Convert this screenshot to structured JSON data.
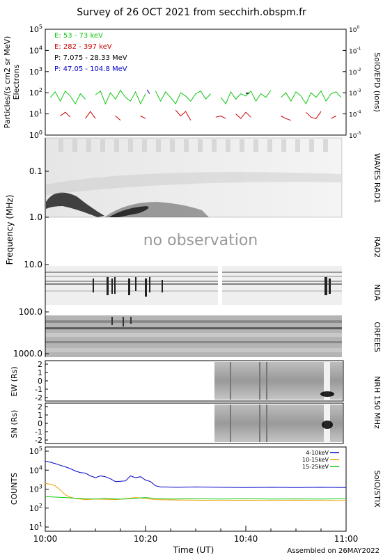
{
  "header": {
    "title": "Survey of 26 OCT 2021 from secchirh.obspm.fr",
    "assembled": "Assembled on 26MAY2022"
  },
  "colors": {
    "e_low": "#10c810",
    "e_high": "#c80000",
    "p_low": "#000000",
    "p_high": "#0000c8",
    "stix_4_10": "#0000c8",
    "stix_10_15": "#f0a000",
    "stix_15_25": "#10c810"
  },
  "panels": {
    "epd": {
      "ylabel_1": "Particles/(s cm2 sr MeV)",
      "ylabel_2": "Electrons",
      "right_label": "SolO/EPD (ions)",
      "legend": [
        {
          "label": "E: 53 - 73 keV",
          "color_key": "e_low"
        },
        {
          "label": "E: 282 - 397 keV",
          "color_key": "e_high"
        },
        {
          "label": "P: 7.075 - 28.33 MeV",
          "color_key": "p_low"
        },
        {
          "label": "P: 47.05 - 104.8 MeV",
          "color_key": "p_high"
        }
      ],
      "left_ticks": [
        "10^5",
        "10^4",
        "10^3",
        "10^2",
        "10^1",
        "10^0"
      ],
      "right_ticks": [
        "10^0",
        "10^-1",
        "10^-2",
        "10^-3",
        "10^-4",
        "10^-5"
      ]
    },
    "waves": {
      "label": "WAVES RAD1"
    },
    "rad2": {
      "label": "RAD2",
      "note": "no observation"
    },
    "nda": {
      "label": "NDA"
    },
    "orfees": {
      "label": "ORFEES"
    },
    "freq_axis": {
      "ylabel": "Frequency (MHz)",
      "ticks": [
        "0.1",
        "1.0",
        "10.0",
        "100.0",
        "1000.0"
      ]
    },
    "nrh_ew": {
      "ylabel": "EW (Rs)"
    },
    "nrh_sn": {
      "ylabel": "SN (Rs)"
    },
    "nrh_label": "NRH 150 MHz",
    "nrh_ticks": [
      "2",
      "1",
      "0",
      "-1",
      "-2"
    ],
    "stix": {
      "ylabel": "COUNTS",
      "right_label": "SolO/STIX",
      "legend": [
        {
          "label": "4-10keV",
          "color_key": "stix_4_10"
        },
        {
          "label": "10-15keV",
          "color_key": "stix_10_15"
        },
        {
          "label": "15-25keV",
          "color_key": "stix_15_25"
        }
      ],
      "ticks": [
        "10^5",
        "10^4",
        "10^3",
        "10^2",
        "10^1"
      ]
    }
  },
  "x_axis": {
    "label": "Time (UT)",
    "ticks": [
      "10:00",
      "10:20",
      "10:40",
      "11:00"
    ]
  },
  "chart_data": [
    {
      "type": "line",
      "title": "SolO/EPD",
      "ylabel": "Particles/(s cm2 sr MeV)",
      "yscale": "log",
      "ylim": [
        1,
        100000
      ],
      "y2lim": [
        1e-05,
        1
      ],
      "xlim": [
        "10:00",
        "11:00"
      ],
      "series": [
        {
          "name": "E: 53 - 73 keV",
          "x": [
            1,
            2,
            3,
            4,
            5,
            6,
            7,
            8,
            10,
            11,
            12,
            13,
            14,
            15,
            16,
            17,
            18,
            19,
            20,
            22,
            23,
            24,
            25,
            26,
            27,
            28,
            29,
            30,
            31,
            32,
            33,
            35,
            36,
            37,
            38,
            39,
            40,
            41,
            42,
            43,
            44,
            45,
            47,
            48,
            49,
            50,
            51,
            52,
            53,
            54,
            55,
            56,
            57,
            58,
            59
          ],
          "y": [
            60,
            110,
            40,
            120,
            70,
            30,
            90,
            50,
            80,
            120,
            30,
            100,
            50,
            130,
            60,
            40,
            110,
            30,
            90,
            120,
            40,
            110,
            60,
            30,
            100,
            70,
            40,
            90,
            120,
            50,
            90,
            60,
            30,
            110,
            50,
            90,
            70,
            120,
            40,
            90,
            60,
            130,
            60,
            100,
            40,
            110,
            70,
            30,
            100,
            60,
            120,
            40,
            90,
            110,
            60
          ]
        },
        {
          "name": "E: 282 - 397 keV",
          "x": [
            3,
            4,
            5,
            8,
            9,
            10,
            14,
            15,
            19,
            20,
            26,
            27,
            28,
            29,
            34,
            35,
            36,
            38,
            39,
            40,
            41,
            47,
            48,
            49,
            52,
            53,
            54,
            55,
            57,
            58
          ],
          "y": [
            8,
            12,
            7,
            6,
            13,
            6,
            8,
            5,
            8,
            6,
            15,
            8,
            13,
            5,
            7,
            8,
            6,
            10,
            6,
            12,
            7,
            8,
            6,
            5,
            12,
            7,
            6,
            13,
            6,
            8
          ]
        }
      ]
    },
    {
      "type": "line",
      "title": "SolO/STIX",
      "ylabel": "COUNTS",
      "yscale": "log",
      "ylim": [
        1,
        100000
      ],
      "xlim": [
        "10:00",
        "11:00"
      ],
      "series": [
        {
          "name": "4-10keV",
          "x": [
            0,
            1,
            2,
            3,
            4,
            5,
            6,
            7,
            8,
            9,
            10,
            11,
            12,
            13,
            14,
            15,
            16,
            17,
            18,
            19,
            20,
            21,
            22,
            23,
            24,
            26,
            30,
            35,
            40,
            45,
            50,
            55,
            60
          ],
          "y": [
            30000,
            26000,
            22000,
            18000,
            15000,
            12000,
            9000,
            7500,
            7000,
            5000,
            4000,
            5000,
            4500,
            3500,
            2500,
            2600,
            2700,
            5000,
            4000,
            4500,
            3000,
            2500,
            1500,
            1300,
            1300,
            1250,
            1300,
            1250,
            1200,
            1250,
            1200,
            1250,
            1200
          ]
        },
        {
          "name": "10-15keV",
          "x": [
            0,
            1,
            2,
            3,
            4,
            5,
            6,
            7,
            8,
            10,
            12,
            14,
            16,
            18,
            19,
            20,
            22,
            25,
            30,
            35,
            40,
            45,
            50,
            55,
            60
          ],
          "y": [
            2000,
            1800,
            1500,
            900,
            500,
            380,
            320,
            300,
            280,
            300,
            290,
            280,
            310,
            360,
            340,
            320,
            280,
            270,
            260,
            250,
            260,
            250,
            260,
            250,
            250
          ]
        },
        {
          "name": "15-25keV",
          "x": [
            0,
            2,
            4,
            6,
            8,
            10,
            12,
            14,
            16,
            18,
            20,
            22,
            25,
            30,
            35,
            40,
            45,
            50,
            55,
            60
          ],
          "y": [
            400,
            380,
            360,
            330,
            310,
            300,
            320,
            300,
            300,
            330,
            360,
            320,
            300,
            310,
            300,
            310,
            300,
            305,
            300,
            310
          ]
        }
      ]
    }
  ]
}
